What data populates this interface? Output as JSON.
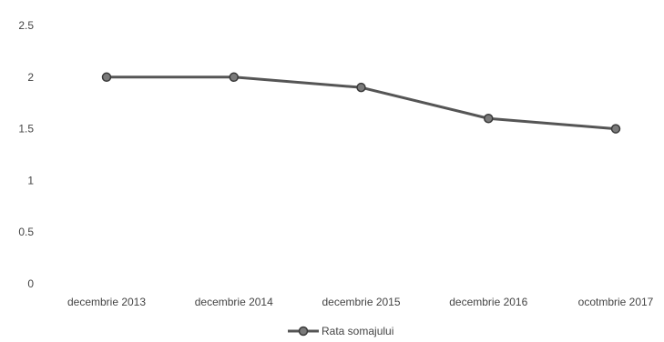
{
  "chart_data": {
    "type": "line",
    "categories": [
      "decembrie 2013",
      "decembrie 2014",
      "decembrie 2015",
      "decembrie 2016",
      "ocotmbrie 2017"
    ],
    "series": [
      {
        "name": "Rata somajului",
        "values": [
          2.0,
          2.0,
          1.9,
          1.6,
          1.5
        ]
      }
    ],
    "y_ticks": [
      "0",
      "0.5",
      "1",
      "1.5",
      "2",
      "2.5"
    ],
    "ylim": [
      0,
      2.5
    ],
    "grid": false,
    "legend_position": "bottom",
    "colors": {
      "line": "#555555",
      "marker_fill": "#7a7a7a",
      "marker_stroke": "#3a3a3a"
    }
  }
}
